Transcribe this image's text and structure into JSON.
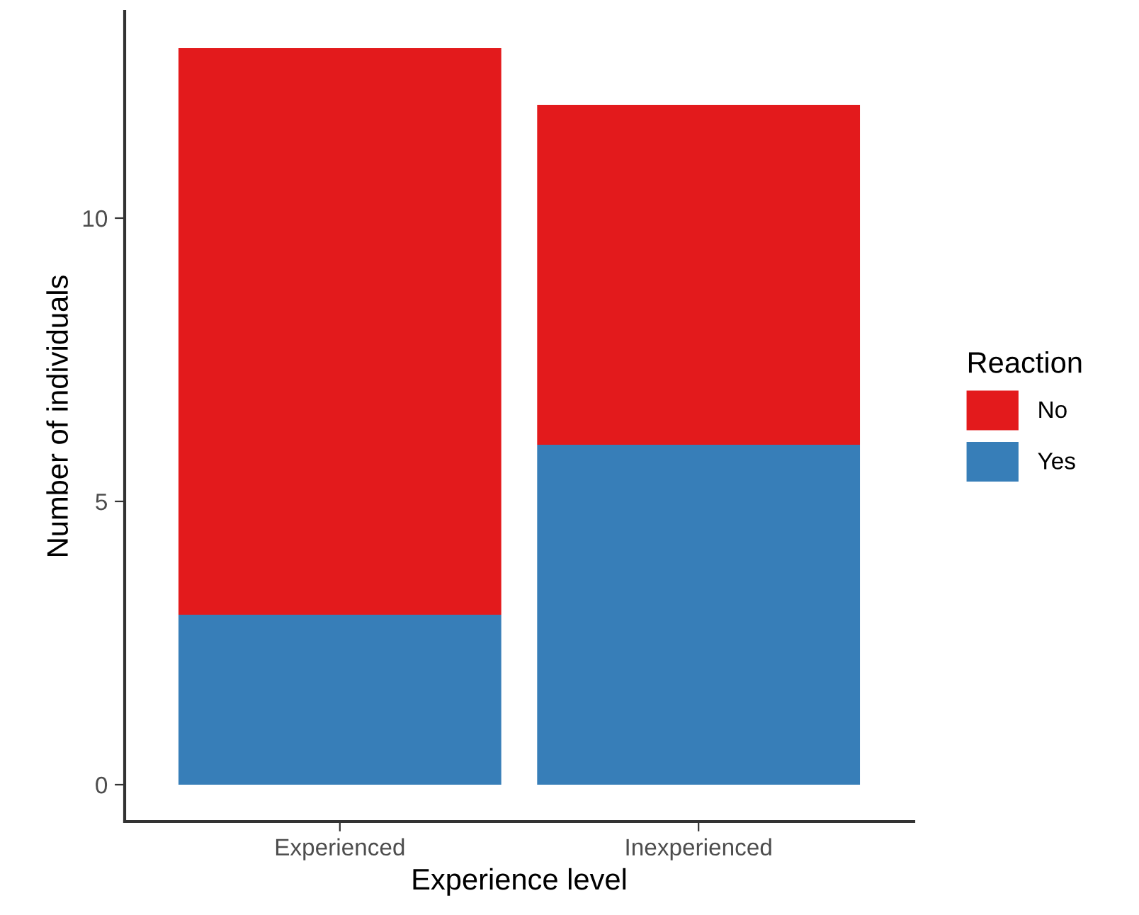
{
  "chart_data": {
    "type": "bar",
    "stacked": true,
    "xlabel": "Experience level",
    "ylabel": "Number of individuals",
    "legend_title": "Reaction",
    "legend": "right",
    "categories": [
      "Experienced",
      "Inexperienced"
    ],
    "series": [
      {
        "name": "Yes",
        "color": "#377eb8",
        "values": [
          3,
          6
        ]
      },
      {
        "name": "No",
        "color": "#e31a1c",
        "values": [
          10,
          6
        ]
      }
    ],
    "ylim": [
      -0.65,
      13.65
    ],
    "yticks": [
      0,
      5,
      10
    ],
    "grid": false
  }
}
